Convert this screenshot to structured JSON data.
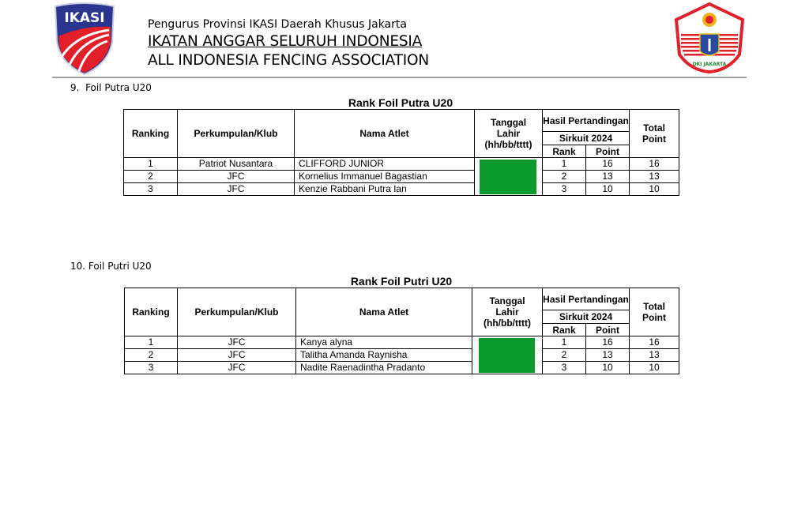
{
  "header": {
    "subtitle": "Pengurus Provinsi IKASI Daerah Khusus Jakarta",
    "org_name": "IKATAN ANGGAR SELURUH INDONESIA",
    "org_name_en": "ALL INDONESIA FENCING ASSOCIATION",
    "left_logo_text": "IKASI",
    "right_logo_text": "DKI JAKARTA",
    "colors": {
      "ikasi_blue": "#2a3590",
      "ikasi_red": "#e3202a",
      "dki_red": "#e0202a",
      "dob_fill": "#0a9a2c"
    }
  },
  "columns": {
    "ranking": "Ranking",
    "club": "Perkumpulan/Klub",
    "name": "Nama Atlet",
    "dob": "Tanggal Lahir (hh/bb/tttt)",
    "results": "Hasil Pertandingan",
    "circuit": "Sirkuit 2024",
    "rank": "Rank",
    "point": "Point",
    "total": "Total Point"
  },
  "sections": [
    {
      "heading": "9.  Foil Putra U20",
      "title": "Rank Foil Putra U20",
      "rows": [
        {
          "ranking": "1",
          "club": "Patriot Nusantara",
          "name": "CLIFFORD JUNIOR",
          "rank": "1",
          "point": "16",
          "total": "16"
        },
        {
          "ranking": "2",
          "club": "JFC",
          "name": "Kornelius Immanuel Bagastian",
          "rank": "2",
          "point": "13",
          "total": "13"
        },
        {
          "ranking": "3",
          "club": "JFC",
          "name": "Kenzie Rabbani Putra Ian",
          "rank": "3",
          "point": "10",
          "total": "10"
        }
      ]
    },
    {
      "heading": "10. Foil Putri U20",
      "title": "Rank Foil Putri U20",
      "rows": [
        {
          "ranking": "1",
          "club": "JFC",
          "name": "Kanya alyna",
          "rank": "1",
          "point": "16",
          "total": "16"
        },
        {
          "ranking": "2",
          "club": "JFC",
          "name": "Talitha Amanda Raynisha",
          "rank": "2",
          "point": "13",
          "total": "13"
        },
        {
          "ranking": "3",
          "club": "JFC",
          "name": "Nadite Raenadintha Pradanto",
          "rank": "3",
          "point": "10",
          "total": "10"
        }
      ]
    }
  ]
}
